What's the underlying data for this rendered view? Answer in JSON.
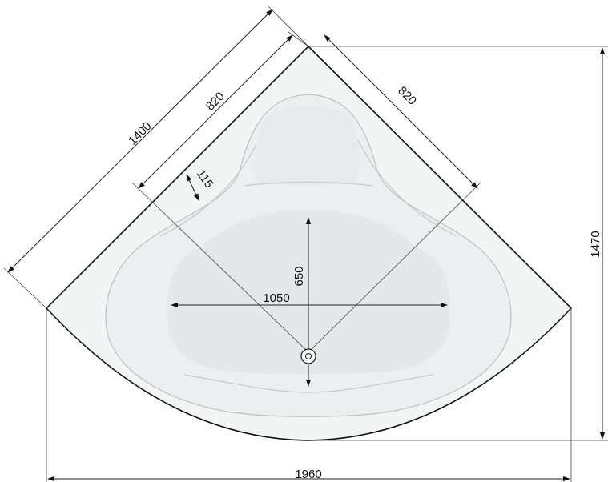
{
  "dimensions": {
    "side_length": "1400",
    "left_inner": "820",
    "right_inner": "820",
    "rim_width": "115",
    "basin_depth": "650",
    "basin_width": "1050",
    "overall_depth": "1470",
    "overall_width": "1960"
  },
  "colors": {
    "outline": "#111111",
    "shell": "#f3f5f5",
    "basin": "#e4e8e8",
    "rim_lines": "#c3caca"
  },
  "icons": {
    "drain": "drain-icon",
    "arrowheads": "arrowhead"
  }
}
